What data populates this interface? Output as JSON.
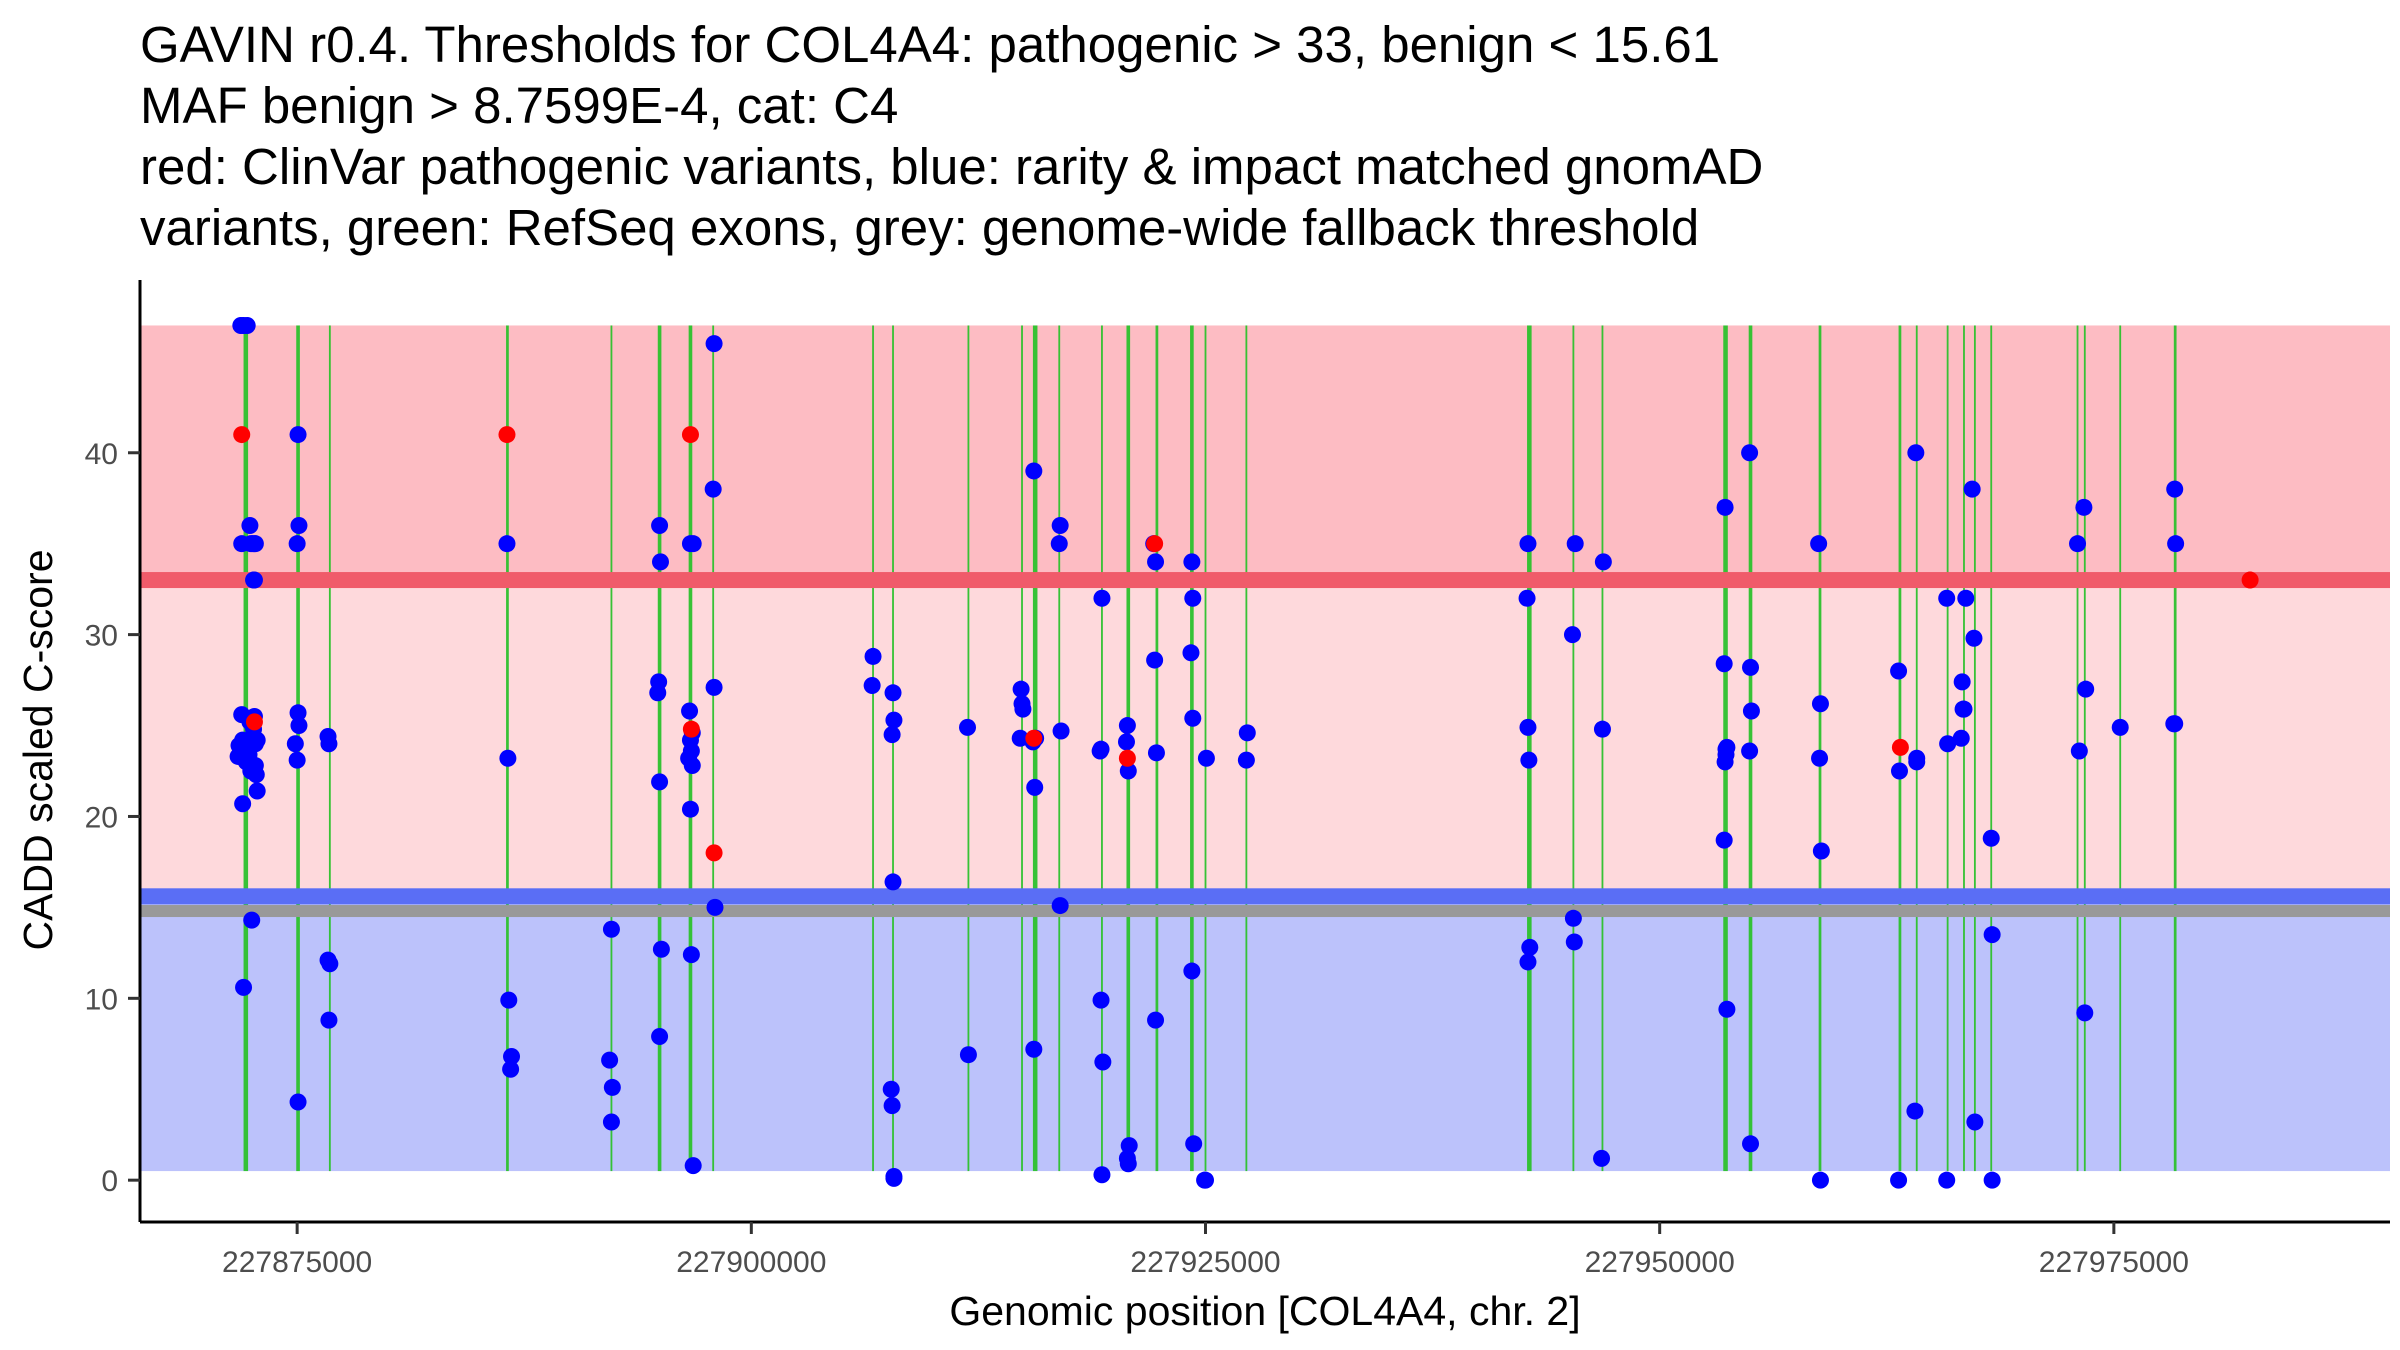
{
  "chart_data": {
    "type": "scatter",
    "title": [
      "GAVIN r0.4. Thresholds for COL4A4: pathogenic > 33, benign < 15.61",
      "MAF benign > 8.7599E-4, cat: C4",
      "red: ClinVar pathogenic variants, blue: rarity & impact matched gnomAD",
      "variants, green: RefSeq exons, grey: genome-wide fallback threshold"
    ],
    "xlabel": "Genomic position [COL4A4, chr. 2]",
    "ylabel": "CADD scaled C-score",
    "xlim": [
      227866350,
      227990200
    ],
    "ylim": [
      -2.3,
      49.5
    ],
    "x_ticks": [
      227875000,
      227900000,
      227925000,
      227950000,
      227975000
    ],
    "x_tick_labels": [
      "227875000",
      "227900000",
      "227925000",
      "227950000",
      "227975000"
    ],
    "y_ticks": [
      0,
      10,
      20,
      30,
      40
    ],
    "y_tick_labels": [
      "0",
      "10",
      "20",
      "30",
      "40"
    ],
    "thresholds": {
      "pathogenic": 33,
      "benign": 15.61,
      "fallback": 14.8,
      "region_top": 47,
      "region_bottom": 0.5
    },
    "colors": {
      "pathogenic_region": "#fdbcc3",
      "vus_region": "#fed9dc",
      "benign_region": "#bcc2fb",
      "pathogenic_line": "#f05b6a",
      "benign_line": "#5a6ef5",
      "fallback_line": "#999999",
      "exon": "#2cc12c",
      "clinvar": "#ff0000",
      "gnomad": "#0000ff"
    },
    "exons": [
      [
        227872050,
        227872300
      ],
      [
        227874950,
        227875150
      ],
      [
        227876750,
        227876850
      ],
      [
        227886500,
        227886650
      ],
      [
        227892250,
        227892350
      ],
      [
        227894850,
        227895050
      ],
      [
        227896550,
        227896750
      ],
      [
        227897850,
        227897950
      ],
      [
        227906650,
        227906750
      ],
      [
        227907750,
        227907850
      ],
      [
        227911900,
        227912000
      ],
      [
        227914850,
        227914950
      ],
      [
        227915500,
        227915750
      ],
      [
        227916900,
        227917000
      ],
      [
        227919250,
        227919350
      ],
      [
        227920650,
        227920850
      ],
      [
        227922250,
        227922400
      ],
      [
        227924150,
        227924350
      ],
      [
        227924950,
        227925050
      ],
      [
        227927200,
        227927300
      ],
      [
        227942700,
        227942950
      ],
      [
        227945200,
        227945300
      ],
      [
        227946800,
        227946900
      ],
      [
        227953500,
        227953750
      ],
      [
        227954900,
        227955100
      ],
      [
        227958750,
        227958900
      ],
      [
        227963150,
        227963300
      ],
      [
        227964100,
        227964200
      ],
      [
        227965800,
        227965900
      ],
      [
        227966700,
        227966800
      ],
      [
        227967300,
        227967400
      ],
      [
        227968200,
        227968300
      ],
      [
        227972950,
        227973050
      ],
      [
        227973350,
        227973450
      ],
      [
        227975300,
        227975400
      ],
      [
        227978300,
        227978450
      ]
    ],
    "series": [
      {
        "name": "ClinVar pathogenic variants",
        "x": [
          227871950,
          227872650,
          227886550,
          227896650,
          227896700,
          227897950,
          227915550,
          227920700,
          227922200,
          227963250,
          227982500
        ],
        "y": [
          41,
          25.2,
          41,
          41,
          24.8,
          18,
          24.3,
          23.2,
          35,
          23.8,
          33
        ]
      },
      {
        "name": "rarity & impact matched gnomAD variants",
        "x": [
          227871900,
          227872050,
          227872250,
          227872400,
          227872450,
          227872550,
          227872600,
          227872650,
          227872700,
          227871950,
          227872400,
          227872600,
          227872000,
          227872700,
          227871800,
          227871950,
          227872350,
          227871750,
          227872200,
          227872450,
          227872800,
          227872000,
          227872500,
          227872050,
          227872650,
          227872800,
          227872700,
          227872750,
          227871950,
          227872650,
          227875050,
          227875100,
          227875000,
          227875050,
          227875100,
          227874900,
          227875000,
          227875050,
          227876700,
          227876750,
          227876700,
          227876800,
          227876750,
          227886550,
          227886600,
          227886650,
          227886800,
          227886750,
          227892300,
          227892200,
          227892350,
          227892300,
          227894950,
          227895000,
          227894900,
          227894850,
          227894950,
          227895050,
          227894950,
          227896650,
          227896800,
          227896600,
          227896750,
          227896650,
          227896700,
          227896550,
          227896750,
          227896650,
          227896700,
          227896800,
          227897950,
          227897900,
          227897950,
          227898000,
          227906700,
          227906650,
          227907800,
          227907850,
          227907750,
          227907800,
          227907850,
          227907700,
          227907750,
          227907850,
          227911900,
          227911950,
          227914850,
          227914900,
          227914950,
          227914800,
          227915550,
          227915500,
          227915600,
          227915550,
          227915650,
          227917000,
          227916950,
          227917050,
          227917000,
          227919200,
          227919300,
          227919250,
          227919350,
          227919300,
          227919250,
          227920700,
          227920650,
          227920750,
          227920800,
          227920700,
          227920750,
          227922150,
          227922250,
          227922200,
          227922300,
          227922250,
          227924250,
          227924300,
          227924200,
          227924300,
          227924250,
          227924350,
          227925050,
          227924950,
          227925000,
          227927300,
          227927250,
          227942750,
          227942700,
          227942750,
          227942800,
          227942850,
          227942750,
          227945350,
          227945200,
          227945250,
          227945300,
          227946900,
          227946850,
          227946800,
          227953600,
          227953550,
          227953700,
          227953650,
          227953600,
          227953550,
          227953700,
          227953650,
          227954950,
          227955000,
          227955050,
          227954950,
          227955000,
          227958750,
          227958850,
          227958800,
          227958900,
          227958850,
          227963150,
          227963200,
          227963150,
          227964100,
          227964150,
          227964050,
          227964150,
          227965800,
          227965850,
          227965800,
          227966650,
          227966700,
          227966600,
          227966850,
          227966750,
          227967200,
          227967350,
          227967300,
          227968250,
          227968300,
          227968300,
          227973000,
          227973100,
          227973350,
          227973450,
          227973400,
          227975350,
          227978350,
          227978400,
          227978350,
          227978300
        ],
        "y": [
          47,
          47,
          47,
          36,
          35,
          35,
          33,
          33,
          35,
          25.6,
          25.2,
          24.8,
          24.2,
          24.0,
          23.9,
          23.6,
          23.4,
          23.3,
          23.0,
          22.5,
          21.4,
          20.7,
          14.3,
          10.6,
          25.5,
          24.2,
          22.8,
          22.3,
          35,
          35,
          41,
          36,
          35,
          25.7,
          25.0,
          24.0,
          23.1,
          4.3,
          24.4,
          24.0,
          12.1,
          11.9,
          8.8,
          35,
          23.2,
          9.9,
          6.8,
          6.1,
          13.8,
          6.6,
          5.1,
          3.2,
          36,
          34,
          27.4,
          26.8,
          21.9,
          12.7,
          7.9,
          35,
          35,
          25.8,
          24.6,
          24.2,
          23.6,
          23.2,
          22.8,
          20.4,
          12.4,
          0.8,
          46,
          38,
          27.1,
          15.0,
          28.8,
          27.2,
          26.8,
          25.3,
          24.5,
          16.4,
          0.1,
          5.0,
          4.1,
          0.2,
          24.9,
          6.9,
          27.0,
          26.2,
          25.9,
          24.3,
          39,
          24.1,
          21.6,
          7.2,
          24.3,
          36,
          35,
          24.7,
          15.1,
          23.6,
          32,
          9.9,
          6.5,
          0.3,
          23.7,
          25.0,
          24.1,
          22.5,
          1.9,
          1.2,
          0.9,
          35,
          34,
          28.6,
          23.5,
          8.8,
          34,
          32,
          29.0,
          25.4,
          11.5,
          2.0,
          23.2,
          0.0,
          0.0,
          24.6,
          23.1,
          35,
          32,
          24.9,
          23.1,
          12.8,
          12.0,
          35,
          30.0,
          14.4,
          13.1,
          34,
          24.8,
          1.2,
          37,
          28.4,
          23.8,
          23.4,
          23.0,
          18.7,
          9.4,
          23.7,
          40,
          28.2,
          25.8,
          23.6,
          2.0,
          35,
          26.2,
          23.2,
          18.1,
          0.0,
          28.0,
          22.5,
          0.0,
          40,
          23.0,
          3.8,
          23.2,
          32,
          24.0,
          0.0,
          27.4,
          25.9,
          24.3,
          32,
          25.9,
          38,
          3.2,
          29.8,
          18.8,
          13.5,
          0.0,
          35,
          23.6,
          37,
          27.0,
          9.2,
          24.9,
          38,
          35,
          25.1,
          25.1
        ]
      }
    ]
  }
}
